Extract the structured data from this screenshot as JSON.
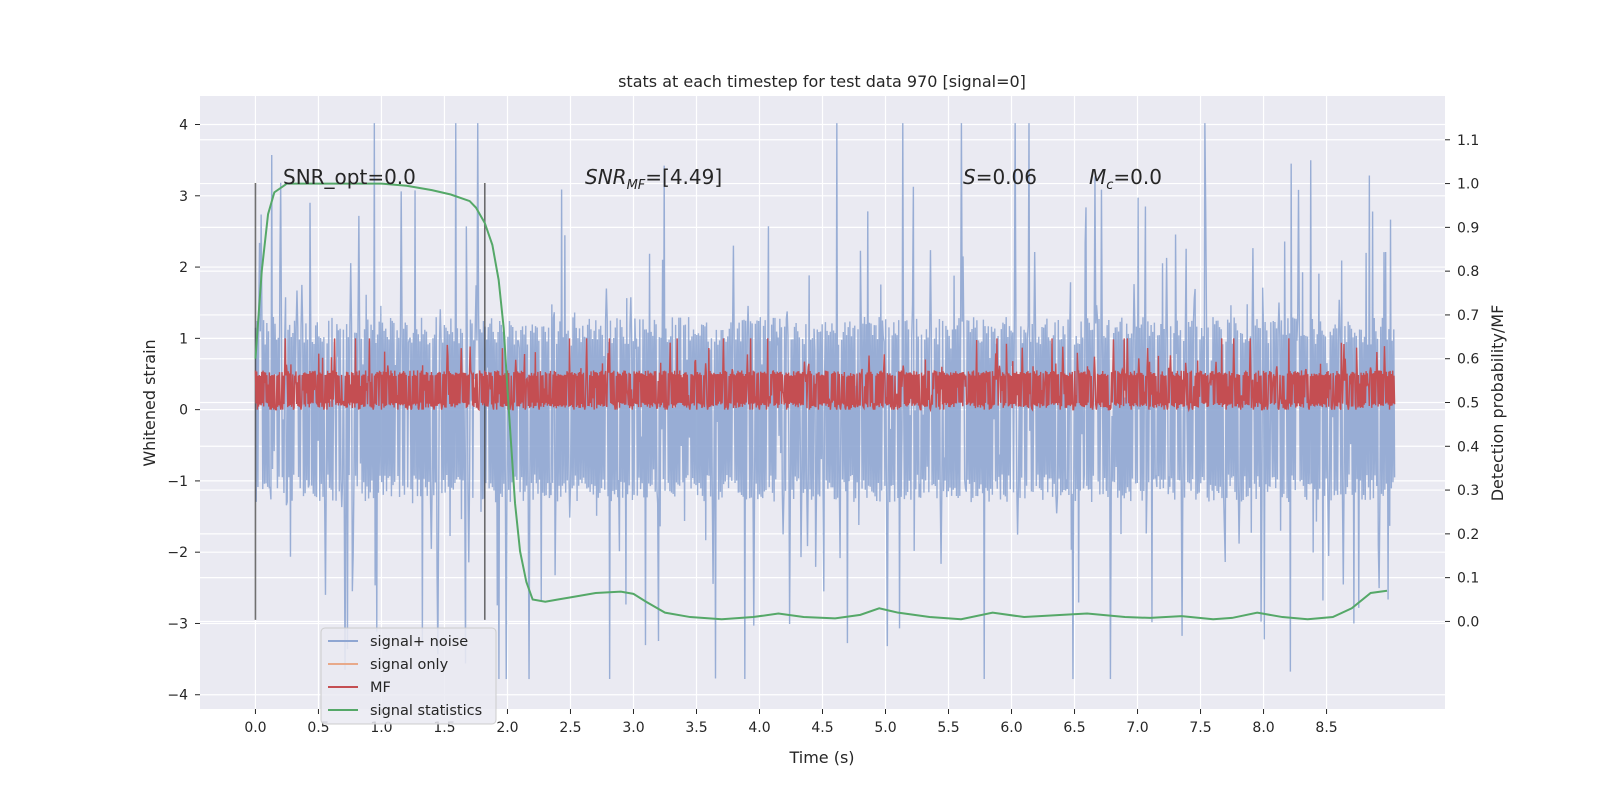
{
  "chart_data": {
    "type": "line",
    "title": "stats at each timestep for test data 970 [signal=0]",
    "xlabel": "Time (s)",
    "ylabel": "Whitened strain",
    "ylabel_right": "Detection probability/MF",
    "xlim": [
      -0.44,
      9.44
    ],
    "ylim": [
      -4.2,
      4.4
    ],
    "ylim_right": [
      -0.2,
      1.2
    ],
    "x_ticks": [
      0.0,
      0.5,
      1.0,
      1.5,
      2.0,
      2.5,
      3.0,
      3.5,
      4.0,
      4.5,
      5.0,
      5.5,
      6.0,
      6.5,
      7.0,
      7.5,
      8.0,
      8.5
    ],
    "x_tick_labels": [
      "0.0",
      "0.5",
      "1.0",
      "1.5",
      "2.0",
      "2.5",
      "3.0",
      "3.5",
      "4.0",
      "4.5",
      "5.0",
      "5.5",
      "6.0",
      "6.5",
      "7.0",
      "7.5",
      "8.0",
      "8.5"
    ],
    "y_ticks": [
      -4,
      -3,
      -2,
      -1,
      0,
      1,
      2,
      3,
      4
    ],
    "y_tick_labels": [
      "−4",
      "−3",
      "−2",
      "−1",
      "0",
      "1",
      "2",
      "3",
      "4"
    ],
    "y_right_ticks": [
      0.0,
      0.1,
      0.2,
      0.3,
      0.4,
      0.5,
      0.6,
      0.7,
      0.8,
      0.9,
      1.0,
      1.1
    ],
    "y_right_tick_labels": [
      "0.0",
      "0.1",
      "0.2",
      "0.3",
      "0.4",
      "0.5",
      "0.6",
      "0.7",
      "0.8",
      "0.9",
      "1.0",
      "1.1"
    ],
    "vlines": [
      0.0,
      1.82
    ],
    "vline_range": [
      -2.95,
      3.18
    ],
    "annotations": {
      "snr_opt": "SNR_opt=0.0",
      "snr_mf_base": "SNR",
      "snr_mf_sub": "MF",
      "snr_mf_value": "=[4.49]",
      "s_symbol": "S",
      "s_value": "=0.06",
      "mc_base": "M",
      "mc_sub": "c",
      "mc_value": "=0.0"
    },
    "series": [
      {
        "name": "signal+ noise",
        "color": "#8fa6d2",
        "axis": "left",
        "style": "noise",
        "x_range": [
          0.0,
          9.04
        ],
        "band": [
          -1.3,
          1.3
        ],
        "extremes": [
          -3.78,
          4.02
        ],
        "samples": 1400
      },
      {
        "name": "signal only",
        "color": "#e8a98a",
        "axis": "left",
        "x": [],
        "y": []
      },
      {
        "name": "MF",
        "color": "#c44e52",
        "axis": "left",
        "style": "noise",
        "x_range": [
          0.0,
          9.04
        ],
        "band": [
          0.02,
          0.55
        ],
        "extremes": [
          0.0,
          1.0
        ],
        "samples": 1800
      },
      {
        "name": "signal statistics",
        "color": "#55a868",
        "axis": "right",
        "x": [
          0.0,
          0.05,
          0.1,
          0.15,
          0.25,
          0.5,
          0.8,
          1.0,
          1.2,
          1.4,
          1.55,
          1.7,
          1.75,
          1.82,
          1.88,
          1.93,
          1.97,
          2.0,
          2.03,
          2.06,
          2.1,
          2.15,
          2.2,
          2.3,
          2.4,
          2.5,
          2.7,
          2.9,
          3.0,
          3.1,
          3.25,
          3.45,
          3.7,
          3.95,
          4.15,
          4.35,
          4.6,
          4.8,
          4.95,
          5.1,
          5.35,
          5.6,
          5.85,
          6.1,
          6.4,
          6.6,
          6.9,
          7.1,
          7.35,
          7.6,
          7.75,
          7.95,
          8.15,
          8.35,
          8.55,
          8.7,
          8.85,
          8.98
        ],
        "y": [
          0.6,
          0.8,
          0.93,
          0.98,
          1.0,
          1.0,
          1.0,
          1.0,
          0.995,
          0.985,
          0.975,
          0.96,
          0.945,
          0.91,
          0.86,
          0.78,
          0.67,
          0.53,
          0.4,
          0.27,
          0.16,
          0.09,
          0.05,
          0.045,
          0.05,
          0.055,
          0.065,
          0.068,
          0.063,
          0.045,
          0.02,
          0.01,
          0.005,
          0.01,
          0.018,
          0.01,
          0.007,
          0.015,
          0.03,
          0.02,
          0.01,
          0.005,
          0.02,
          0.01,
          0.015,
          0.018,
          0.01,
          0.008,
          0.012,
          0.005,
          0.008,
          0.02,
          0.01,
          0.005,
          0.01,
          0.03,
          0.065,
          0.07
        ]
      }
    ],
    "legend": {
      "position": "lower-left",
      "entries": [
        "signal+ noise",
        "signal only",
        "MF",
        "signal statistics"
      ]
    }
  }
}
